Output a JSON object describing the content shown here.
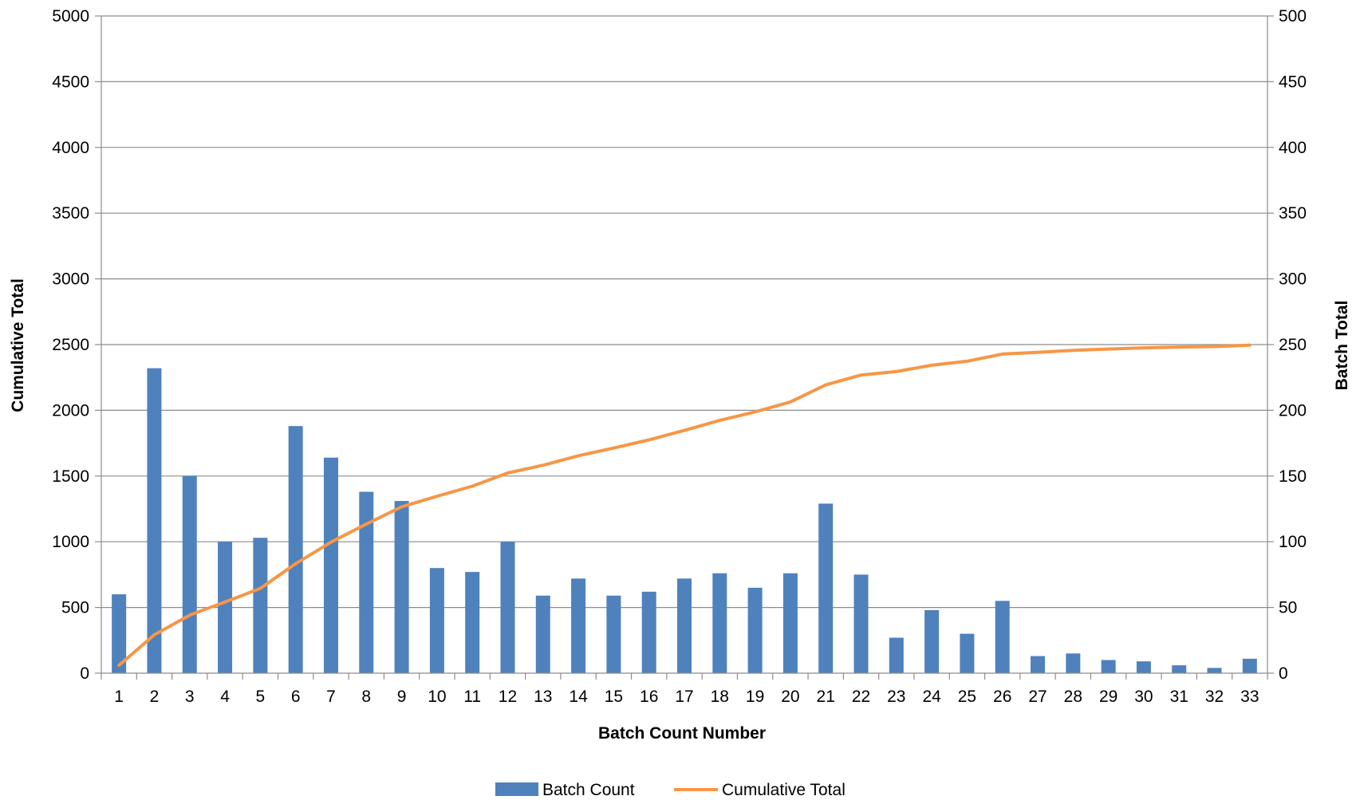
{
  "chart_data": {
    "type": "bar",
    "title": "",
    "xlabel": "Batch Count Number",
    "ylabel_left": "Cumulative Total",
    "ylabel_right": "Batch Total",
    "categories": [
      "1",
      "2",
      "3",
      "4",
      "5",
      "6",
      "7",
      "8",
      "9",
      "10",
      "11",
      "12",
      "13",
      "14",
      "15",
      "16",
      "17",
      "18",
      "19",
      "20",
      "21",
      "22",
      "23",
      "24",
      "25",
      "26",
      "27",
      "28",
      "29",
      "30",
      "31",
      "32",
      "33"
    ],
    "y_left": {
      "min": 0,
      "max": 5000,
      "ticks": [
        "0",
        "500",
        "1000",
        "1500",
        "2000",
        "2500",
        "3000",
        "3500",
        "4000",
        "4500",
        "5000"
      ]
    },
    "y_right": {
      "min": 0,
      "max": 500,
      "ticks": [
        "0",
        "50",
        "100",
        "150",
        "200",
        "250",
        "300",
        "350",
        "400",
        "450",
        "500"
      ]
    },
    "grid": true,
    "legend_position": "bottom",
    "series": [
      {
        "name": "Batch Count",
        "type": "bar",
        "axis": "right",
        "color": "#4f81bd",
        "values": [
          60,
          232,
          150,
          100,
          103,
          188,
          164,
          138,
          131,
          80,
          77,
          100,
          59,
          72,
          59,
          62,
          72,
          76,
          65,
          76,
          129,
          75,
          27,
          48,
          30,
          55,
          13,
          15,
          10,
          9,
          6,
          4,
          11
        ]
      },
      {
        "name": "Cumulative Total",
        "type": "line",
        "axis": "left",
        "color": "#f79646",
        "values": [
          60,
          292,
          442,
          542,
          645,
          833,
          997,
          1135,
          1266,
          1346,
          1423,
          1523,
          1582,
          1654,
          1713,
          1775,
          1847,
          1923,
          1988,
          2064,
          2193,
          2268,
          2295,
          2343,
          2373,
          2428,
          2441,
          2456,
          2466,
          2475,
          2481,
          2485,
          2496
        ]
      }
    ]
  }
}
